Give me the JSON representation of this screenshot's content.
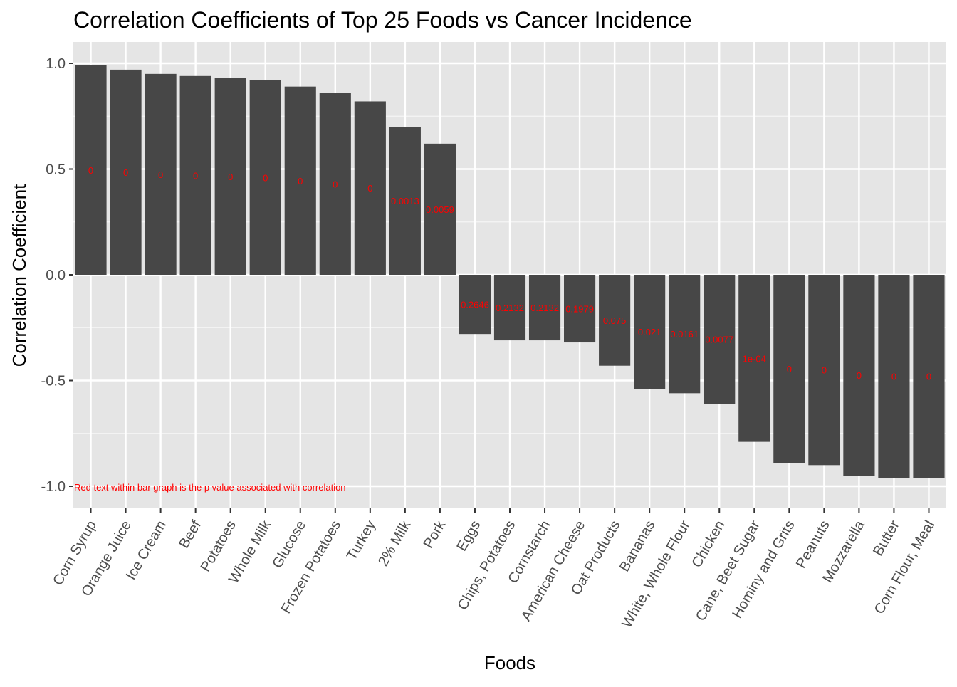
{
  "chart_data": {
    "type": "bar",
    "title": "Correlation Coefficients of Top 25 Foods vs Cancer Incidence",
    "xlabel": "Foods",
    "ylabel": "Correlation Coefficient",
    "ylim": [
      -1.1,
      1.1
    ],
    "yticks": [
      1.0,
      0.5,
      0.0,
      -0.5,
      -1.0
    ],
    "ytick_labels": [
      "1.0",
      "0.5",
      "0.0",
      "-0.5",
      "-1.0"
    ],
    "grid": true,
    "annotation": "Red text within bar graph is the p value associated with correlation",
    "categories": [
      "Corn Syrup",
      "Orange Juice",
      "Ice Cream",
      "Beef",
      "Potatoes",
      "Whole Milk",
      "Glucose",
      "Frozen Potatoes",
      "Turkey",
      "2% Milk",
      "Pork",
      "Eggs",
      "Chips, Potatoes",
      "Cornstarch",
      "American Cheese",
      "Oat Products",
      "Bananas",
      "White, Whole Flour",
      "Chicken",
      "Cane, Beet Sugar",
      "Hominy and Grits",
      "Peanuts",
      "Mozzarella",
      "Butter",
      "Corn Flour, Meal"
    ],
    "values": [
      0.99,
      0.97,
      0.95,
      0.94,
      0.93,
      0.92,
      0.89,
      0.86,
      0.82,
      0.7,
      0.62,
      -0.28,
      -0.31,
      -0.31,
      -0.32,
      -0.43,
      -0.54,
      -0.56,
      -0.61,
      -0.79,
      -0.89,
      -0.9,
      -0.95,
      -0.96,
      -0.96
    ],
    "p_value_labels": [
      "0",
      "0",
      "0",
      "0",
      "0",
      "0",
      "0",
      "0",
      "0",
      "0.0013",
      "0.0059",
      "0.2646",
      "0.2132",
      "0.2132",
      "0.1979",
      "0.075",
      "0.021",
      "0.0161",
      "0.0077",
      "1e-04",
      "0",
      "0",
      "0",
      "0",
      "0"
    ],
    "colors": {
      "bar": "#474747",
      "panel": "#e5e5e5",
      "grid_major": "#ffffff",
      "p_value_text": "#ff0000",
      "text": "#000000",
      "tick_text": "#4d4d4d",
      "tick_mark": "#333333"
    }
  }
}
